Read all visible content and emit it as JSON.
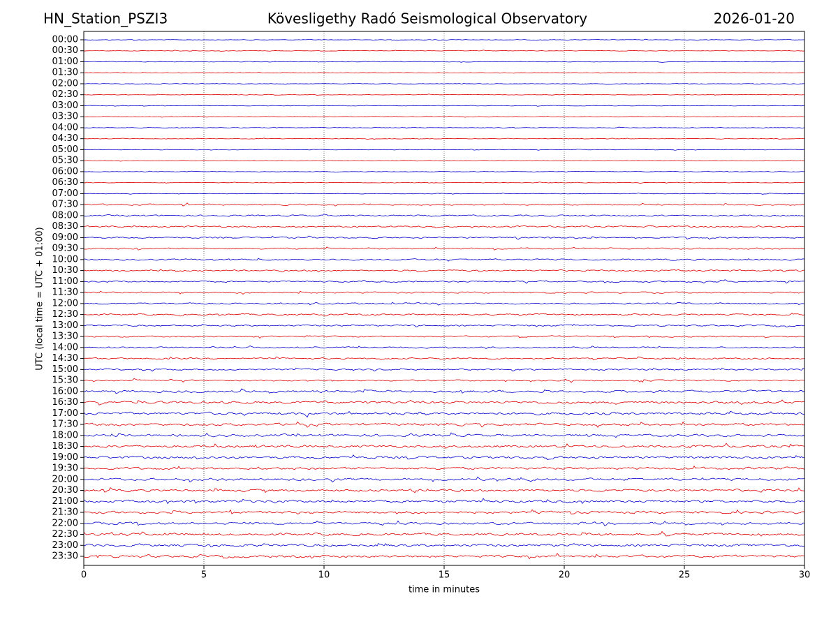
{
  "chart_data": {
    "type": "helicorder",
    "title": "Kövesligethy Radó Seismological Observatory",
    "station": "HN_Station_PSZI3",
    "date": "2026-01-20",
    "xlabel": "time in minutes",
    "ylabel": "UTC (local time = UTC + 01:00)",
    "categories": [
      "00:00",
      "00:30",
      "01:00",
      "01:30",
      "02:00",
      "02:30",
      "03:00",
      "03:30",
      "04:00",
      "04:30",
      "05:00",
      "05:30",
      "06:00",
      "06:30",
      "07:00",
      "07:30",
      "08:00",
      "08:30",
      "09:00",
      "09:30",
      "10:00",
      "10:30",
      "11:00",
      "11:30",
      "12:00",
      "12:30",
      "13:00",
      "13:30",
      "14:00",
      "14:30",
      "15:00",
      "15:30",
      "16:00",
      "16:30",
      "17:00",
      "17:30",
      "18:00",
      "18:30",
      "19:00",
      "19:30",
      "20:00",
      "20:30",
      "21:00",
      "21:30",
      "22:00",
      "22:30",
      "23:00",
      "23:30"
    ],
    "colors": [
      "#0000cc",
      "#dd0000"
    ],
    "xlim": [
      0,
      30
    ],
    "xticks": [
      0,
      5,
      10,
      15,
      20,
      25,
      30
    ],
    "grid": true
  }
}
